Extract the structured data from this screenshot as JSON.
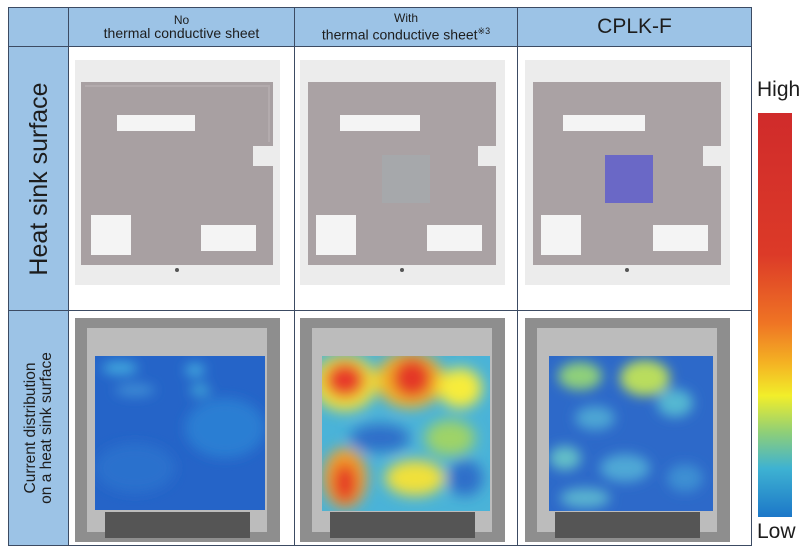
{
  "columns": [
    {
      "line1": "No",
      "line2": "thermal conductive sheet",
      "mark": ""
    },
    {
      "line1": "With",
      "line2": "thermal conductive sheet",
      "mark": "※3"
    },
    {
      "line1": "CPLK-F",
      "line2": "",
      "mark": ""
    }
  ],
  "rows": [
    {
      "label_lines": [
        "Heat sink surface"
      ]
    },
    {
      "label_lines": [
        "Current distribution",
        "on a heat sink surface"
      ]
    }
  ],
  "scale": {
    "high": "High",
    "low": "Low"
  },
  "colors": {
    "header_bg": "#9cc3e6",
    "border": "#3c4b63",
    "plate": "#aaa2a4",
    "sheet_gray": "#a6a8ab",
    "sheet_purple": "#6a68c6"
  }
}
